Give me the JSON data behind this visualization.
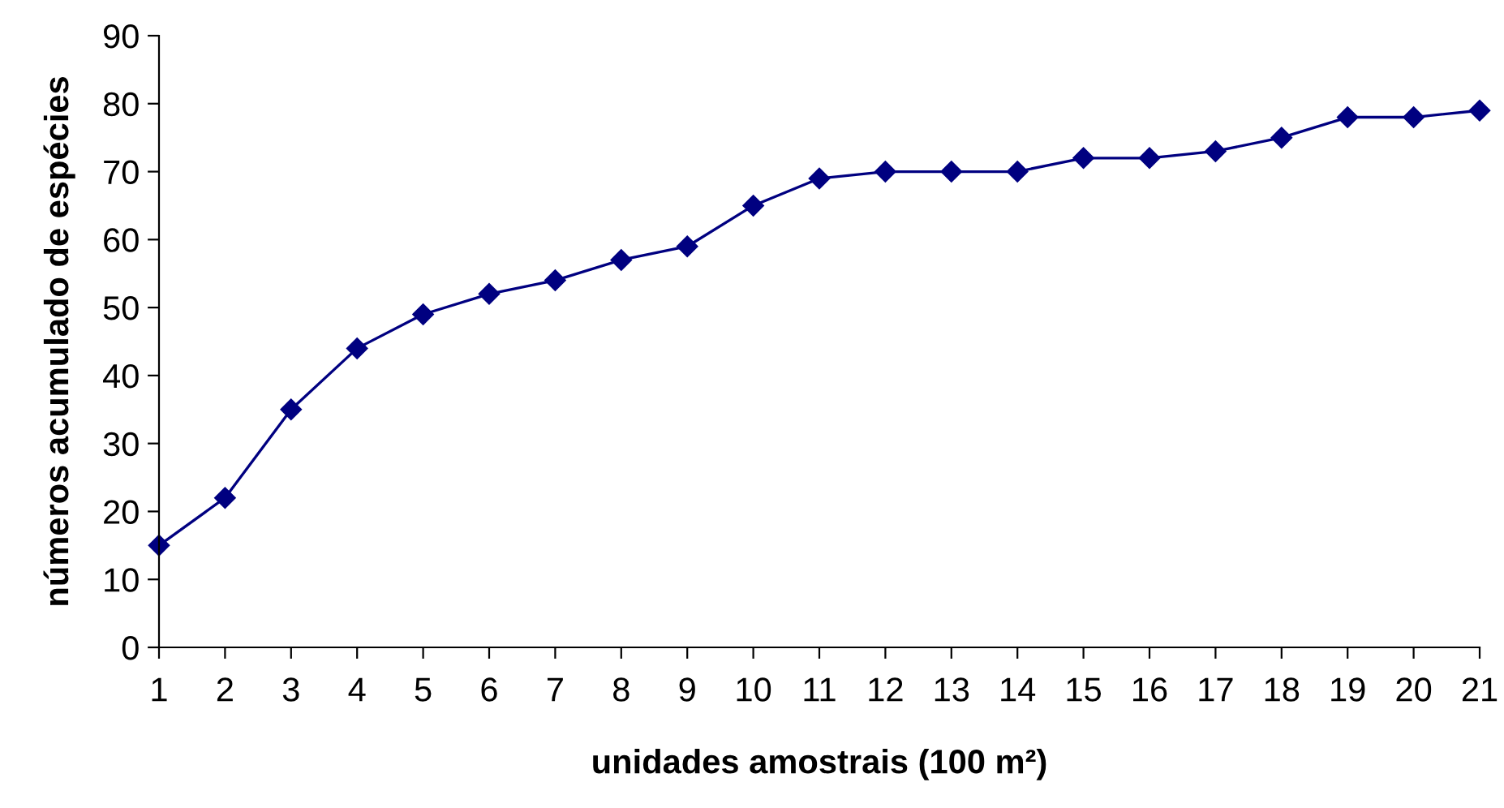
{
  "chart_data": {
    "type": "line",
    "xlabel": "unidades amostrais (100 m²)",
    "ylabel": "números acumulado de espécies",
    "x": [
      1,
      2,
      3,
      4,
      5,
      6,
      7,
      8,
      9,
      10,
      11,
      12,
      13,
      14,
      15,
      16,
      17,
      18,
      19,
      20,
      21
    ],
    "series": [
      {
        "color": "#000080",
        "values": [
          15,
          22,
          35,
          44,
          49,
          52,
          54,
          57,
          59,
          65,
          69,
          70,
          70,
          70,
          72,
          72,
          73,
          75,
          78,
          78,
          79
        ]
      }
    ],
    "xlim": [
      1,
      21
    ],
    "xticks": [
      1,
      2,
      3,
      4,
      5,
      6,
      7,
      8,
      9,
      10,
      11,
      12,
      13,
      14,
      15,
      16,
      17,
      18,
      19,
      20,
      21
    ],
    "ylim": [
      0,
      90
    ],
    "yticks": [
      0,
      10,
      20,
      30,
      40,
      50,
      60,
      70,
      80,
      90
    ],
    "marker": "diamond",
    "line_style": "solid",
    "grid": false,
    "legend": false
  }
}
